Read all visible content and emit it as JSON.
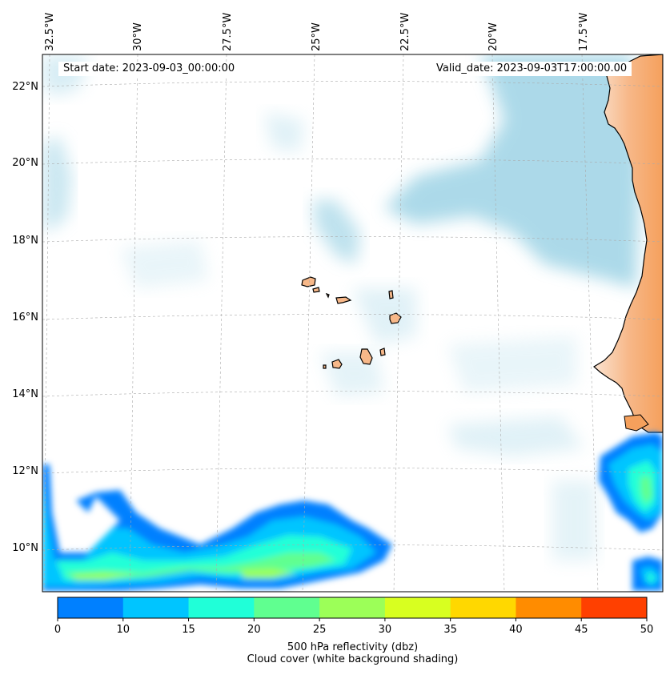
{
  "start_date_text": "Start date: 2023-09-03_00:00:00",
  "valid_date_text": "Valid_date: 2023-09-03T17:00:00.00",
  "lon_labels": [
    "32.5°W",
    "30°W",
    "27.5°W",
    "25°W",
    "22.5°W",
    "20°W",
    "17.5°W"
  ],
  "lat_labels": [
    "22°N",
    "20°N",
    "18°N",
    "16°N",
    "14°N",
    "12°N",
    "10°N"
  ],
  "colorbar": {
    "ticks": [
      "0",
      "10",
      "15",
      "20",
      "25",
      "30",
      "35",
      "40",
      "45",
      "50"
    ],
    "colors": [
      "#0080ff",
      "#00c5ff",
      "#20ffd8",
      "#60ff90",
      "#9cff58",
      "#d8ff20",
      "#ffd800",
      "#ff8c00",
      "#ff4000"
    ],
    "label_line1": "500 hPa reflectivity (dbz)",
    "label_line2": "Cloud cover (white background shading)"
  },
  "colors": {
    "land": "#f5a05c",
    "cloud": "#a8d8e8",
    "sea": "#ffffff"
  }
}
